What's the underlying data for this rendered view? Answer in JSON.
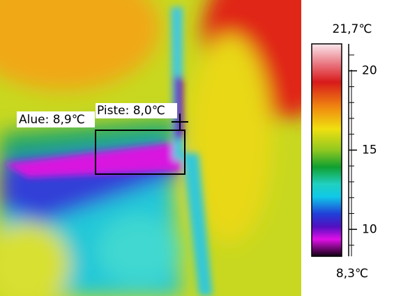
{
  "image": {
    "area_label": "Alue: 8,9℃",
    "spot_label": "Piste: 8,0℃"
  },
  "scale": {
    "max": {
      "value": 21.7,
      "label": "21,7℃"
    },
    "min": {
      "value": 8.3,
      "label": "8,3℃"
    },
    "ticks": [
      10,
      15,
      20
    ],
    "minor_ticks": [
      9,
      11,
      12,
      13,
      14,
      16,
      17,
      18,
      19,
      21
    ]
  }
}
